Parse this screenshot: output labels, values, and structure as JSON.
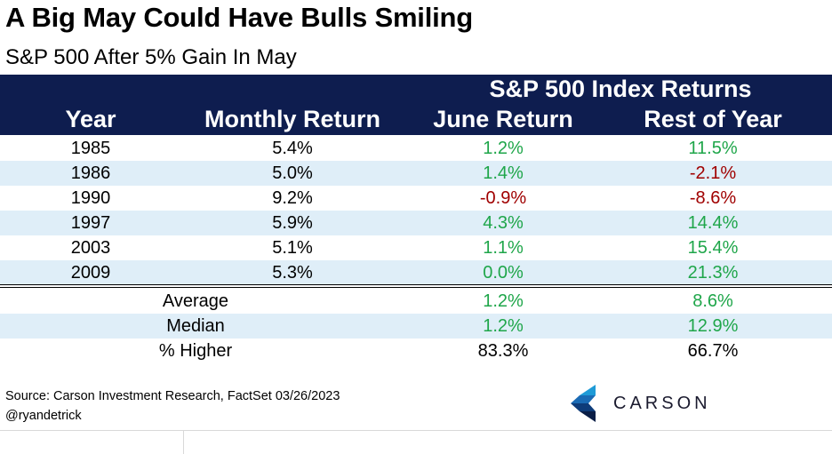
{
  "chart_data": {
    "type": "table",
    "title": "A Big May Could Have Bulls Smiling",
    "subtitle": "S&P 500 After 5% Gain In May",
    "group_header": "S&P 500 Index Returns",
    "columns": [
      "Year",
      "Monthly Return",
      "June Return",
      "Rest of Year"
    ],
    "rows": [
      {
        "year": "1985",
        "monthly": "5.4%",
        "june": "1.2%",
        "rest": "11.5%"
      },
      {
        "year": "1986",
        "monthly": "5.0%",
        "june": "1.4%",
        "rest": "-2.1%"
      },
      {
        "year": "1990",
        "monthly": "9.2%",
        "june": "-0.9%",
        "rest": "-8.6%"
      },
      {
        "year": "1997",
        "monthly": "5.9%",
        "june": "4.3%",
        "rest": "14.4%"
      },
      {
        "year": "2003",
        "monthly": "5.1%",
        "june": "1.1%",
        "rest": "15.4%"
      },
      {
        "year": "2009",
        "monthly": "5.3%",
        "june": "0.0%",
        "rest": "21.3%"
      }
    ],
    "summary": [
      {
        "label": "Average",
        "june": "1.2%",
        "rest": "8.6%"
      },
      {
        "label": "Median",
        "june": "1.2%",
        "rest": "12.9%"
      },
      {
        "label": "% Higher",
        "june": "83.3%",
        "rest": "66.7%"
      }
    ]
  },
  "footer": {
    "source": "Source: Carson Investment Research, FactSet 03/26/2023",
    "handle": "@ryandetrick"
  },
  "logo": {
    "word": "CARSON",
    "icon": "carson-chevron-logo"
  },
  "colors": {
    "header_bg": "#0e1d4f",
    "positive": "#1fa64a",
    "negative": "#a00000",
    "row_shade": "#dfeef8"
  }
}
